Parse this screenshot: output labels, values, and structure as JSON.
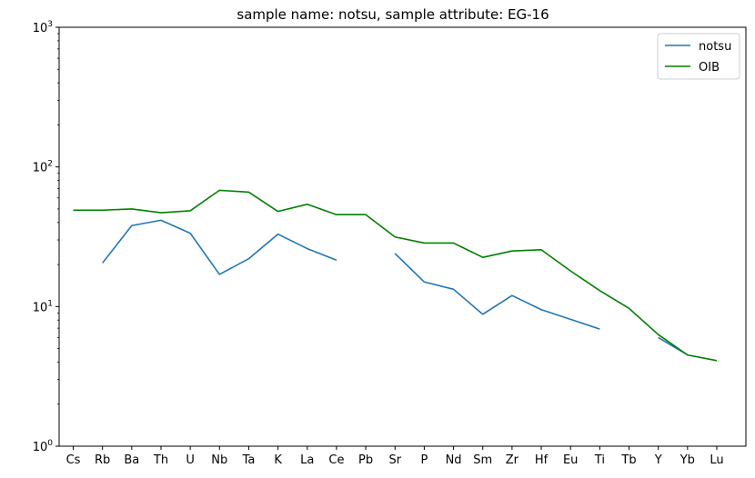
{
  "chart_data": {
    "type": "line",
    "title": "sample name: notsu, sample attribute: EG-16",
    "xlabel": "",
    "ylabel": "",
    "yscale": "log",
    "ylim": [
      1,
      1000
    ],
    "ytick_labels": [
      {
        "base": "10",
        "exp": "0",
        "value": 1
      },
      {
        "base": "10",
        "exp": "1",
        "value": 10
      },
      {
        "base": "10",
        "exp": "2",
        "value": 100
      },
      {
        "base": "10",
        "exp": "3",
        "value": 1000
      }
    ],
    "categories": [
      "Cs",
      "Rb",
      "Ba",
      "Th",
      "U",
      "Nb",
      "Ta",
      "K",
      "La",
      "Ce",
      "Pb",
      "Sr",
      "P",
      "Nd",
      "Sm",
      "Zr",
      "Hf",
      "Eu",
      "Ti",
      "Tb",
      "Y",
      "Yb",
      "Lu"
    ],
    "legend_position": "top-right",
    "grid": false,
    "series": [
      {
        "name": "notsu",
        "color": "#1f77b4",
        "values": [
          null,
          20.5,
          38,
          41.5,
          33.5,
          17,
          22,
          33,
          26,
          21.5,
          null,
          24,
          15,
          13.3,
          8.8,
          12,
          9.5,
          8.1,
          6.9,
          null,
          6.0,
          4.5,
          null
        ]
      },
      {
        "name": "OIB",
        "color": "#008000",
        "values": [
          49,
          49,
          50,
          47,
          48.5,
          68,
          66,
          48,
          54,
          45.5,
          45.5,
          31.5,
          28.5,
          28.5,
          22.5,
          25,
          25.5,
          18,
          13,
          9.7,
          6.3,
          4.5,
          4.1
        ]
      }
    ]
  }
}
